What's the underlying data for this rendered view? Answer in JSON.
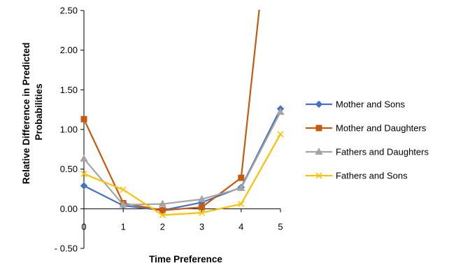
{
  "chart_data": {
    "type": "line",
    "title": "",
    "xlabel": "Time Preference",
    "ylabel": "Relative Difference in Predicted Probabilities",
    "ylabel_lines": [
      "Relative Difference in Predicted",
      "Probabilities"
    ],
    "x": [
      0,
      1,
      2,
      3,
      4,
      5
    ],
    "x_tick_labels": [
      "0",
      "1",
      "2",
      "3",
      "4",
      "5"
    ],
    "ylim": [
      -0.5,
      2.5
    ],
    "y_ticks": [
      -0.5,
      0,
      0.5,
      1,
      1.5,
      2,
      2.5
    ],
    "y_tick_labels": [
      "- 0.50",
      "0.00",
      "0.50",
      "1.00",
      "1.50",
      "2.00",
      "2.50"
    ],
    "grid": false,
    "legend_position": "right",
    "series": [
      {
        "name": "Mother and Sons",
        "color": "#4472C4",
        "marker": "diamond",
        "values": [
          0.29,
          0.04,
          -0.02,
          0.08,
          0.27,
          1.26
        ]
      },
      {
        "name": "Mother and Daughters",
        "color": "#C55A11",
        "marker": "square",
        "values": [
          1.13,
          0.07,
          -0.02,
          0.02,
          0.39,
          5.0
        ]
      },
      {
        "name": "Fathers and Daughters",
        "color": "#A5A5A5",
        "marker": "triangle",
        "values": [
          0.63,
          0.05,
          0.06,
          0.12,
          0.26,
          1.22
        ]
      },
      {
        "name": "Fathers and Sons",
        "color": "#FFC000",
        "marker": "x",
        "values": [
          0.44,
          0.24,
          -0.08,
          -0.05,
          0.06,
          0.94
        ]
      }
    ]
  }
}
